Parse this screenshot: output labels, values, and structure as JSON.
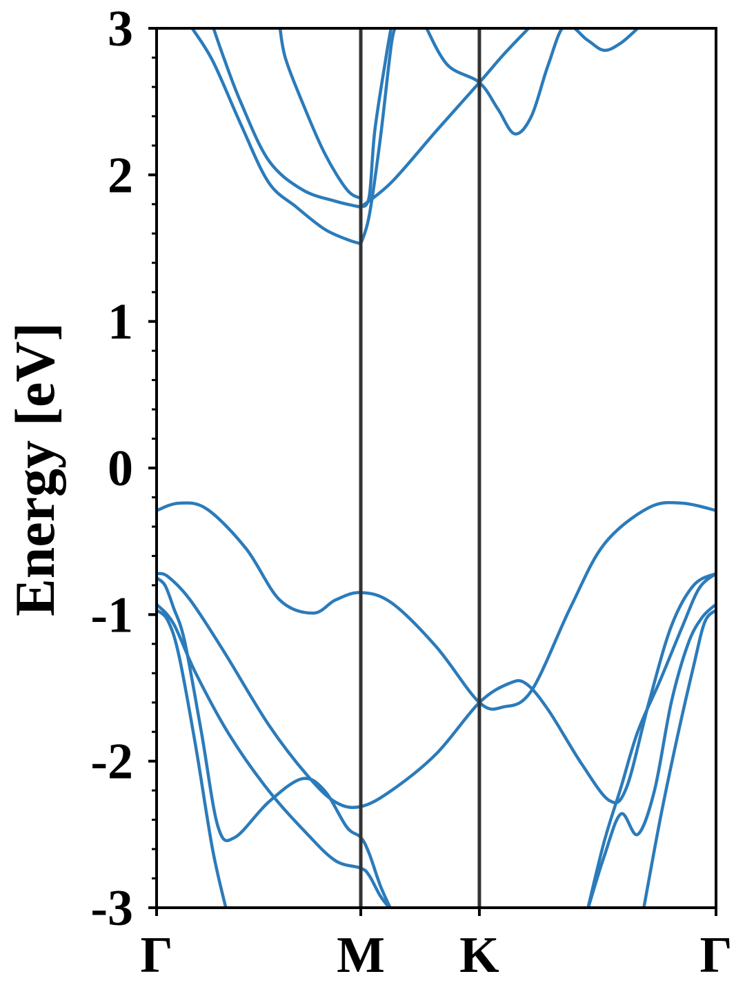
{
  "chart_data": {
    "type": "line",
    "title": "",
    "ylabel": "Energy [eV]",
    "xlabel": "",
    "ylim": [
      -3,
      3
    ],
    "x_range": [
      0,
      1
    ],
    "y_ticks": [
      {
        "value": 3,
        "label": "3"
      },
      {
        "value": 2,
        "label": "2"
      },
      {
        "value": 1,
        "label": "1"
      },
      {
        "value": 0,
        "label": "0"
      },
      {
        "value": -1,
        "label": "-1"
      },
      {
        "value": -2,
        "label": "-2"
      },
      {
        "value": -3,
        "label": "-3"
      }
    ],
    "high_symmetry_points": [
      {
        "label": "Γ",
        "x": 0.0
      },
      {
        "label": "M",
        "x": 0.365
      },
      {
        "label": "K",
        "x": 0.577
      },
      {
        "label": "Γ",
        "x": 1.0
      }
    ],
    "grid": false,
    "line_color": "#2b7bba",
    "divider_color": "#333333",
    "series": [
      {
        "points": [
          [
            0,
            -0.29
          ],
          [
            0.04,
            -0.24
          ],
          [
            0.09,
            -0.28
          ],
          [
            0.16,
            -0.55
          ],
          [
            0.22,
            -0.9
          ],
          [
            0.28,
            -0.99
          ],
          [
            0.32,
            -0.9
          ],
          [
            0.365,
            -0.85
          ],
          [
            0.42,
            -0.92
          ],
          [
            0.5,
            -1.22
          ],
          [
            0.577,
            -1.6
          ],
          [
            0.62,
            -1.63
          ],
          [
            0.67,
            -1.52
          ],
          [
            0.74,
            -0.95
          ],
          [
            0.8,
            -0.52
          ],
          [
            0.88,
            -0.27
          ],
          [
            0.94,
            -0.24
          ],
          [
            1.0,
            -0.29
          ]
        ]
      },
      {
        "points": [
          [
            0,
            -0.72
          ],
          [
            0.02,
            -0.74
          ],
          [
            0.06,
            -0.9
          ],
          [
            0.12,
            -1.25
          ],
          [
            0.2,
            -1.75
          ],
          [
            0.27,
            -2.1
          ],
          [
            0.32,
            -2.28
          ],
          [
            0.365,
            -2.31
          ],
          [
            0.42,
            -2.2
          ],
          [
            0.5,
            -1.95
          ],
          [
            0.577,
            -1.6
          ],
          [
            0.63,
            -1.47
          ],
          [
            0.66,
            -1.47
          ],
          [
            0.7,
            -1.65
          ],
          [
            0.76,
            -2.02
          ],
          [
            0.81,
            -2.27
          ],
          [
            0.84,
            -2.18
          ],
          [
            0.88,
            -1.6
          ],
          [
            0.92,
            -1.08
          ],
          [
            0.96,
            -0.8
          ],
          [
            1.0,
            -0.72
          ]
        ]
      },
      {
        "points": [
          [
            0,
            -0.75
          ],
          [
            0.015,
            -0.8
          ],
          [
            0.03,
            -0.95
          ],
          [
            0.05,
            -1.18
          ],
          [
            0.08,
            -1.8
          ],
          [
            0.11,
            -2.45
          ],
          [
            0.14,
            -2.52
          ],
          [
            0.2,
            -2.28
          ],
          [
            0.26,
            -2.12
          ],
          [
            0.3,
            -2.2
          ],
          [
            0.34,
            -2.45
          ],
          [
            0.365,
            -2.52
          ],
          [
            0.38,
            -2.63
          ],
          [
            0.4,
            -2.85
          ],
          [
            0.42,
            -3.02
          ]
        ]
      },
      {
        "points": [
          [
            0,
            -0.93
          ],
          [
            0.03,
            -1.06
          ],
          [
            0.07,
            -1.4
          ],
          [
            0.13,
            -1.82
          ],
          [
            0.2,
            -2.2
          ],
          [
            0.27,
            -2.5
          ],
          [
            0.32,
            -2.68
          ],
          [
            0.365,
            -2.73
          ],
          [
            0.38,
            -2.78
          ],
          [
            0.4,
            -2.92
          ],
          [
            0.42,
            -3.02
          ]
        ]
      },
      {
        "points": [
          [
            0,
            -0.97
          ],
          [
            0.02,
            -1.04
          ],
          [
            0.04,
            -1.28
          ],
          [
            0.07,
            -1.9
          ],
          [
            0.1,
            -2.6
          ],
          [
            0.125,
            -3.02
          ]
        ]
      },
      {
        "points": [
          [
            0.77,
            -3.02
          ],
          [
            0.8,
            -2.55
          ],
          [
            0.83,
            -2.18
          ],
          [
            0.86,
            -1.8
          ],
          [
            0.9,
            -1.45
          ],
          [
            0.94,
            -1.08
          ],
          [
            0.97,
            -0.82
          ],
          [
            1.0,
            -0.72
          ]
        ]
      },
      {
        "points": [
          [
            0.77,
            -3.02
          ],
          [
            0.8,
            -2.65
          ],
          [
            0.83,
            -2.36
          ],
          [
            0.86,
            -2.5
          ],
          [
            0.89,
            -2.2
          ],
          [
            0.92,
            -1.6
          ],
          [
            0.95,
            -1.2
          ],
          [
            0.975,
            -1.02
          ],
          [
            1.0,
            -0.93
          ]
        ]
      },
      {
        "points": [
          [
            0.87,
            -3.02
          ],
          [
            0.9,
            -2.4
          ],
          [
            0.93,
            -1.85
          ],
          [
            0.96,
            -1.35
          ],
          [
            0.98,
            -1.05
          ],
          [
            1.0,
            -0.97
          ]
        ]
      },
      {
        "points": [
          [
            0.365,
            1.53
          ],
          [
            0.38,
            1.72
          ],
          [
            0.4,
            2.25
          ],
          [
            0.42,
            2.9
          ],
          [
            0.43,
            3.02
          ]
        ]
      },
      {
        "points": [
          [
            0.365,
            1.53
          ],
          [
            0.34,
            1.56
          ],
          [
            0.3,
            1.63
          ],
          [
            0.25,
            1.78
          ],
          [
            0.2,
            1.95
          ],
          [
            0.15,
            2.35
          ],
          [
            0.1,
            2.78
          ],
          [
            0.06,
            3.02
          ]
        ]
      },
      {
        "points": [
          [
            0.365,
            1.78
          ],
          [
            0.32,
            1.82
          ],
          [
            0.26,
            1.9
          ],
          [
            0.2,
            2.1
          ],
          [
            0.15,
            2.5
          ],
          [
            0.12,
            2.8
          ],
          [
            0.1,
            3.02
          ]
        ]
      },
      {
        "points": [
          [
            0.365,
            1.84
          ],
          [
            0.34,
            1.9
          ],
          [
            0.3,
            2.15
          ],
          [
            0.26,
            2.5
          ],
          [
            0.23,
            2.8
          ],
          [
            0.22,
            3.02
          ]
        ]
      },
      {
        "points": [
          [
            0.365,
            1.78
          ],
          [
            0.38,
            1.85
          ],
          [
            0.39,
            2.3
          ],
          [
            0.41,
            2.8
          ],
          [
            0.42,
            3.02
          ]
        ]
      },
      {
        "points": [
          [
            0.365,
            1.78
          ],
          [
            0.42,
            1.95
          ],
          [
            0.5,
            2.3
          ],
          [
            0.577,
            2.63
          ],
          [
            0.62,
            2.82
          ],
          [
            0.67,
            3.02
          ]
        ]
      },
      {
        "points": [
          [
            0.48,
            3.02
          ],
          [
            0.52,
            2.75
          ],
          [
            0.577,
            2.63
          ],
          [
            0.61,
            2.45
          ],
          [
            0.64,
            2.28
          ],
          [
            0.67,
            2.4
          ],
          [
            0.7,
            2.75
          ],
          [
            0.73,
            3.02
          ],
          [
            0.77,
            2.92
          ],
          [
            0.8,
            2.85
          ],
          [
            0.83,
            2.9
          ],
          [
            0.86,
            3.0
          ]
        ]
      },
      {
        "points": [
          [
            0.01,
            3.0
          ],
          [
            0.04,
            3.02
          ]
        ]
      }
    ]
  }
}
